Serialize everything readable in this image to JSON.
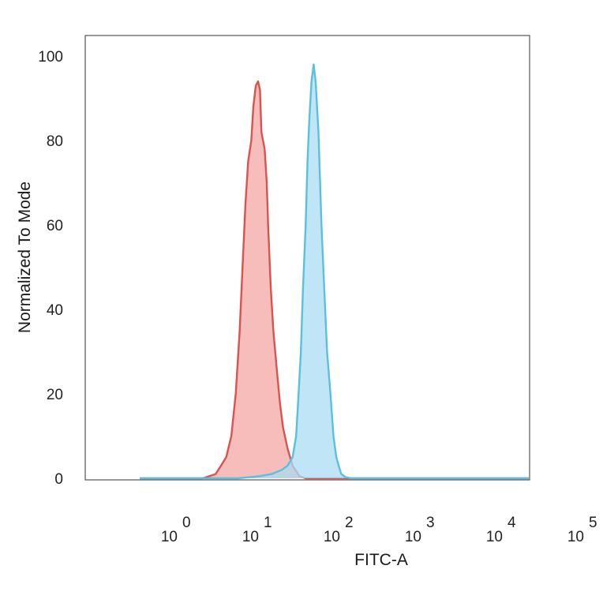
{
  "chart_data": {
    "type": "area",
    "xlabel": "FITC-A",
    "ylabel": "Normalized To Mode",
    "x_scale": "log",
    "xlim": [
      0.5,
      100000
    ],
    "ylim": [
      0,
      105
    ],
    "grid": false,
    "legend": "none",
    "x_ticks": [
      {
        "base": "10",
        "exp": "0",
        "value": 1
      },
      {
        "base": "10",
        "exp": "1",
        "value": 10
      },
      {
        "base": "10",
        "exp": "2",
        "value": 100
      },
      {
        "base": "10",
        "exp": "3",
        "value": 1000
      },
      {
        "base": "10",
        "exp": "4",
        "value": 10000
      },
      {
        "base": "10",
        "exp": "5",
        "value": 100000
      }
    ],
    "y_ticks": [
      "0",
      "20",
      "40",
      "60",
      "80",
      "100"
    ],
    "series": [
      {
        "line_color": "#d9534f",
        "fill_color": "#f4a7a4",
        "points": [
          [
            0.5,
            0
          ],
          [
            3.0,
            0
          ],
          [
            3.6,
            0.5
          ],
          [
            4.3,
            1
          ],
          [
            5.0,
            3
          ],
          [
            5.8,
            5
          ],
          [
            6.7,
            10
          ],
          [
            7.6,
            20
          ],
          [
            8.5,
            35
          ],
          [
            9.2,
            50
          ],
          [
            10.0,
            65
          ],
          [
            10.8,
            75
          ],
          [
            11.8,
            80
          ],
          [
            12.5,
            88
          ],
          [
            13.4,
            93
          ],
          [
            14.3,
            94
          ],
          [
            15.1,
            92
          ],
          [
            15.7,
            82
          ],
          [
            17.2,
            78
          ],
          [
            18.3,
            70
          ],
          [
            19.0,
            60
          ],
          [
            20.5,
            45
          ],
          [
            22.0,
            35
          ],
          [
            24.5,
            25
          ],
          [
            26.5,
            18
          ],
          [
            29.0,
            12
          ],
          [
            33.0,
            7
          ],
          [
            38.0,
            3
          ],
          [
            46.0,
            0.5
          ],
          [
            55.0,
            0
          ],
          [
            100000,
            0
          ]
        ]
      },
      {
        "line_color": "#5bc0de",
        "fill_color": "#a9dcf3",
        "points": [
          [
            0.5,
            0
          ],
          [
            8.0,
            0
          ],
          [
            15.0,
            0.5
          ],
          [
            21.0,
            1
          ],
          [
            28.0,
            2
          ],
          [
            33.0,
            3
          ],
          [
            38.0,
            5
          ],
          [
            42.0,
            10
          ],
          [
            45.0,
            20
          ],
          [
            48.0,
            30
          ],
          [
            51.0,
            45
          ],
          [
            55.0,
            60
          ],
          [
            58.0,
            75
          ],
          [
            61.0,
            85
          ],
          [
            65.0,
            94
          ],
          [
            69.0,
            98
          ],
          [
            73.0,
            94
          ],
          [
            79.0,
            82
          ],
          [
            86.0,
            60
          ],
          [
            93.0,
            45
          ],
          [
            101.0,
            30
          ],
          [
            111.0,
            20
          ],
          [
            121.0,
            10
          ],
          [
            131.0,
            5
          ],
          [
            140.0,
            3
          ],
          [
            151.0,
            1
          ],
          [
            170.0,
            0.3
          ],
          [
            200.0,
            0
          ],
          [
            100000,
            0
          ]
        ]
      }
    ]
  }
}
